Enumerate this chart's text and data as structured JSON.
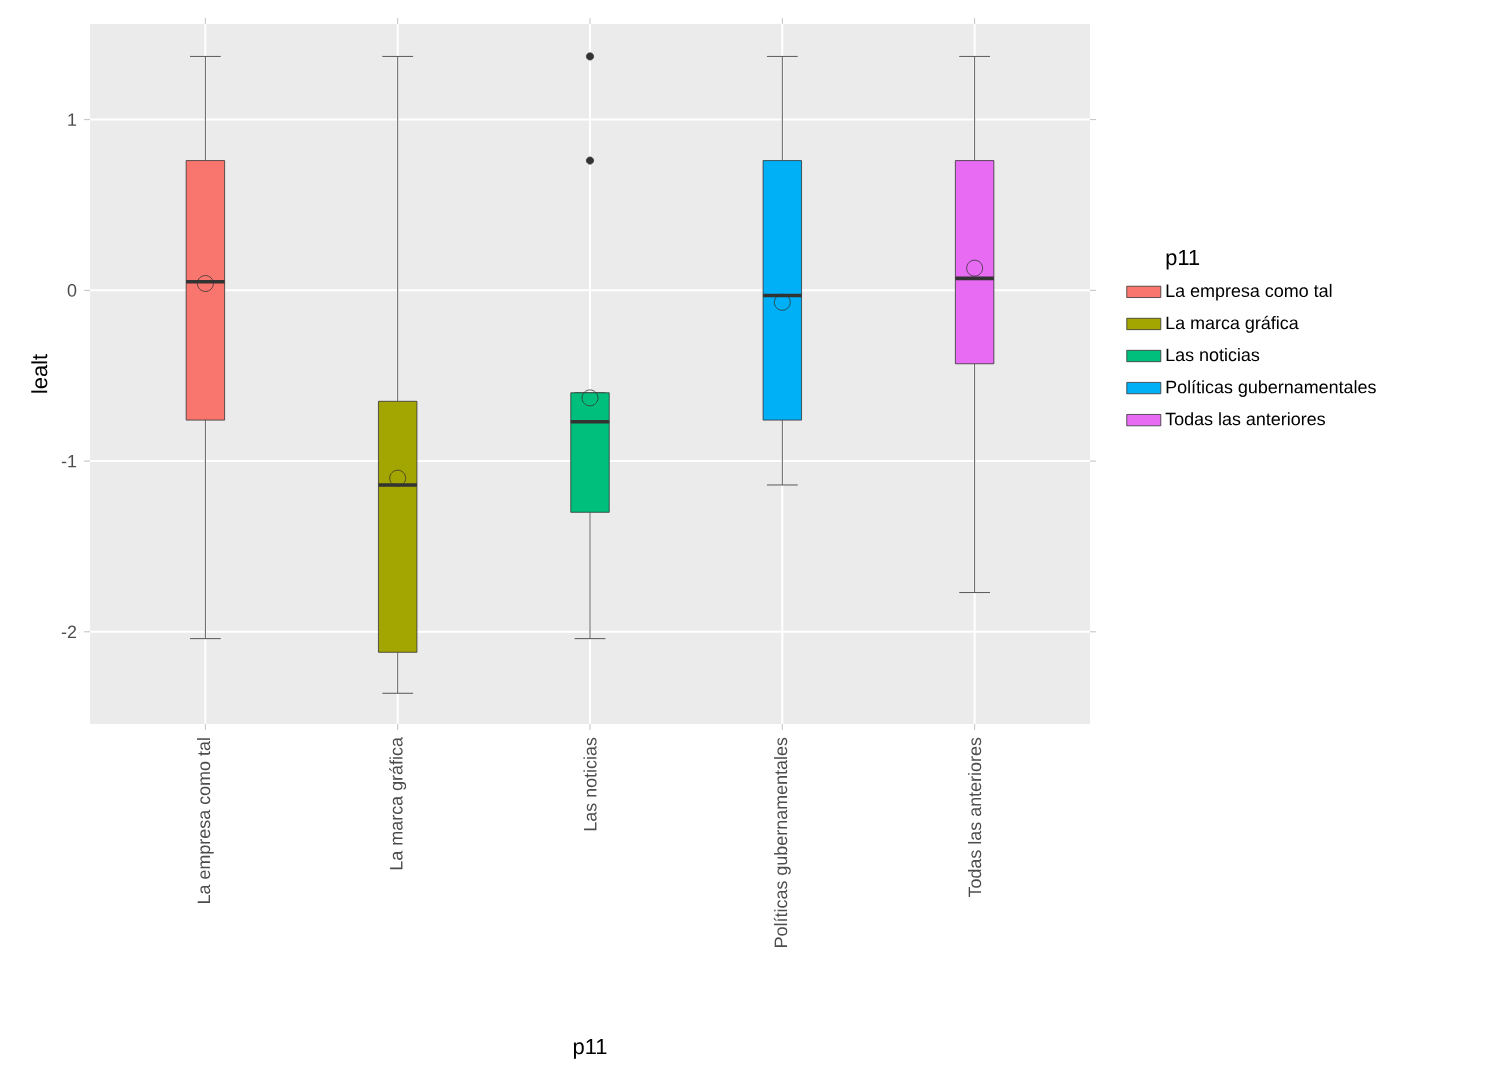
{
  "chart_data": {
    "type": "box",
    "xlabel": "p11",
    "ylabel": "lealt",
    "legend_title": "p11",
    "categories": [
      "La empresa como tal",
      "La marca gráfica",
      "Las noticias",
      "Políticas gubernamentales",
      "Todas las anteriores"
    ],
    "series": [
      {
        "name": "La empresa como tal",
        "color": "#f8766d",
        "x": [
          "La empresa como tal"
        ],
        "boxes": [
          {
            "low": -2.04,
            "q1": -0.76,
            "median": 0.05,
            "q3": 0.76,
            "high": 1.37,
            "mean": 0.04
          }
        ]
      },
      {
        "name": "La marca gráfica",
        "color": "#a3a500",
        "x": [
          "La marca gráfica"
        ],
        "boxes": [
          {
            "low": -2.36,
            "q1": -2.12,
            "median": -1.14,
            "q3": -0.65,
            "high": 1.37,
            "mean": -1.1
          }
        ]
      },
      {
        "name": "Las noticias",
        "color": "#00bf7d",
        "x": [
          "Las noticias"
        ],
        "boxes": [
          {
            "low": -2.04,
            "q1": -1.3,
            "median": -0.77,
            "q3": -0.6,
            "high": -0.6,
            "mean": -0.63,
            "outliers": [
              0.76,
              1.37
            ]
          }
        ]
      },
      {
        "name": "Políticas gubernamentales",
        "color": "#00b0f6",
        "x": [
          "Políticas gubernamentales"
        ],
        "boxes": [
          {
            "low": -1.14,
            "q1": -0.76,
            "median": -0.03,
            "q3": 0.76,
            "high": 1.37,
            "mean": -0.07
          }
        ]
      },
      {
        "name": "Todas las anteriores",
        "color": "#e76bf3",
        "x": [
          "Todas las anteriores"
        ],
        "boxes": [
          {
            "low": -1.77,
            "q1": -0.43,
            "median": 0.07,
            "q3": 0.76,
            "high": 1.37,
            "mean": 0.13
          }
        ]
      }
    ],
    "ylim": [
      -2.54,
      1.56
    ],
    "yticks": [
      -2,
      -1,
      0,
      1
    ],
    "grid": true,
    "legend": "right",
    "marker": "circle"
  }
}
